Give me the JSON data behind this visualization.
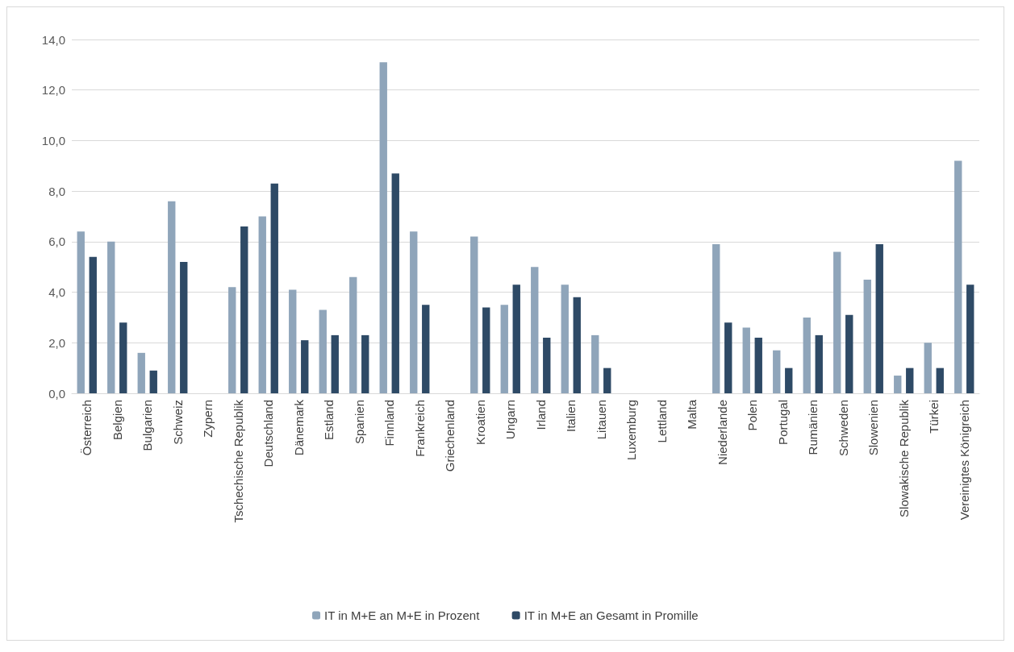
{
  "chart_data": {
    "type": "bar",
    "categories": [
      "Österreich",
      "Belgien",
      "Bulgarien",
      "Schweiz",
      "Zypern",
      "Tschechische Republik",
      "Deutschland",
      "Dänemark",
      "Estland",
      "Spanien",
      "Finnland",
      "Frankreich",
      "Griechenland",
      "Kroatien",
      "Ungarn",
      "Irland",
      "Italien",
      "Litauen",
      "Luxemburg",
      "Lettland",
      "Malta",
      "Niederlande",
      "Polen",
      "Portugal",
      "Rumänien",
      "Schweden",
      "Slowenien",
      "Slowakische Republik",
      "Türkei",
      "Vereinigtes Königreich"
    ],
    "series": [
      {
        "name": "IT in M+E an M+E in Prozent",
        "color": "#8fa5ba",
        "values": [
          6.4,
          6.0,
          1.6,
          7.6,
          null,
          4.2,
          7.0,
          4.1,
          3.3,
          4.6,
          13.1,
          6.4,
          null,
          6.2,
          3.5,
          5.0,
          4.3,
          2.3,
          null,
          null,
          null,
          5.9,
          2.6,
          1.7,
          3.0,
          5.6,
          4.5,
          0.7,
          2.0,
          9.2
        ]
      },
      {
        "name": "IT in M+E an Gesamt in Promille",
        "color": "#2e4a66",
        "values": [
          5.4,
          2.8,
          0.9,
          5.2,
          null,
          6.6,
          8.3,
          2.1,
          2.3,
          2.3,
          8.7,
          3.5,
          null,
          3.4,
          4.3,
          2.2,
          3.8,
          1.0,
          null,
          null,
          null,
          2.8,
          2.2,
          1.0,
          2.3,
          3.1,
          5.9,
          1.0,
          1.0,
          4.3
        ]
      }
    ],
    "ylim": [
      0,
      14
    ],
    "yticks": [
      {
        "value": 0,
        "label": "0,0"
      },
      {
        "value": 2,
        "label": "2,0"
      },
      {
        "value": 4,
        "label": "4,0"
      },
      {
        "value": 6,
        "label": "6,0"
      },
      {
        "value": 8,
        "label": "8,0"
      },
      {
        "value": 10,
        "label": "10,0"
      },
      {
        "value": 12,
        "label": "12,0"
      },
      {
        "value": 14,
        "label": "14,0"
      }
    ],
    "grid": "y",
    "legend": "bottom"
  }
}
